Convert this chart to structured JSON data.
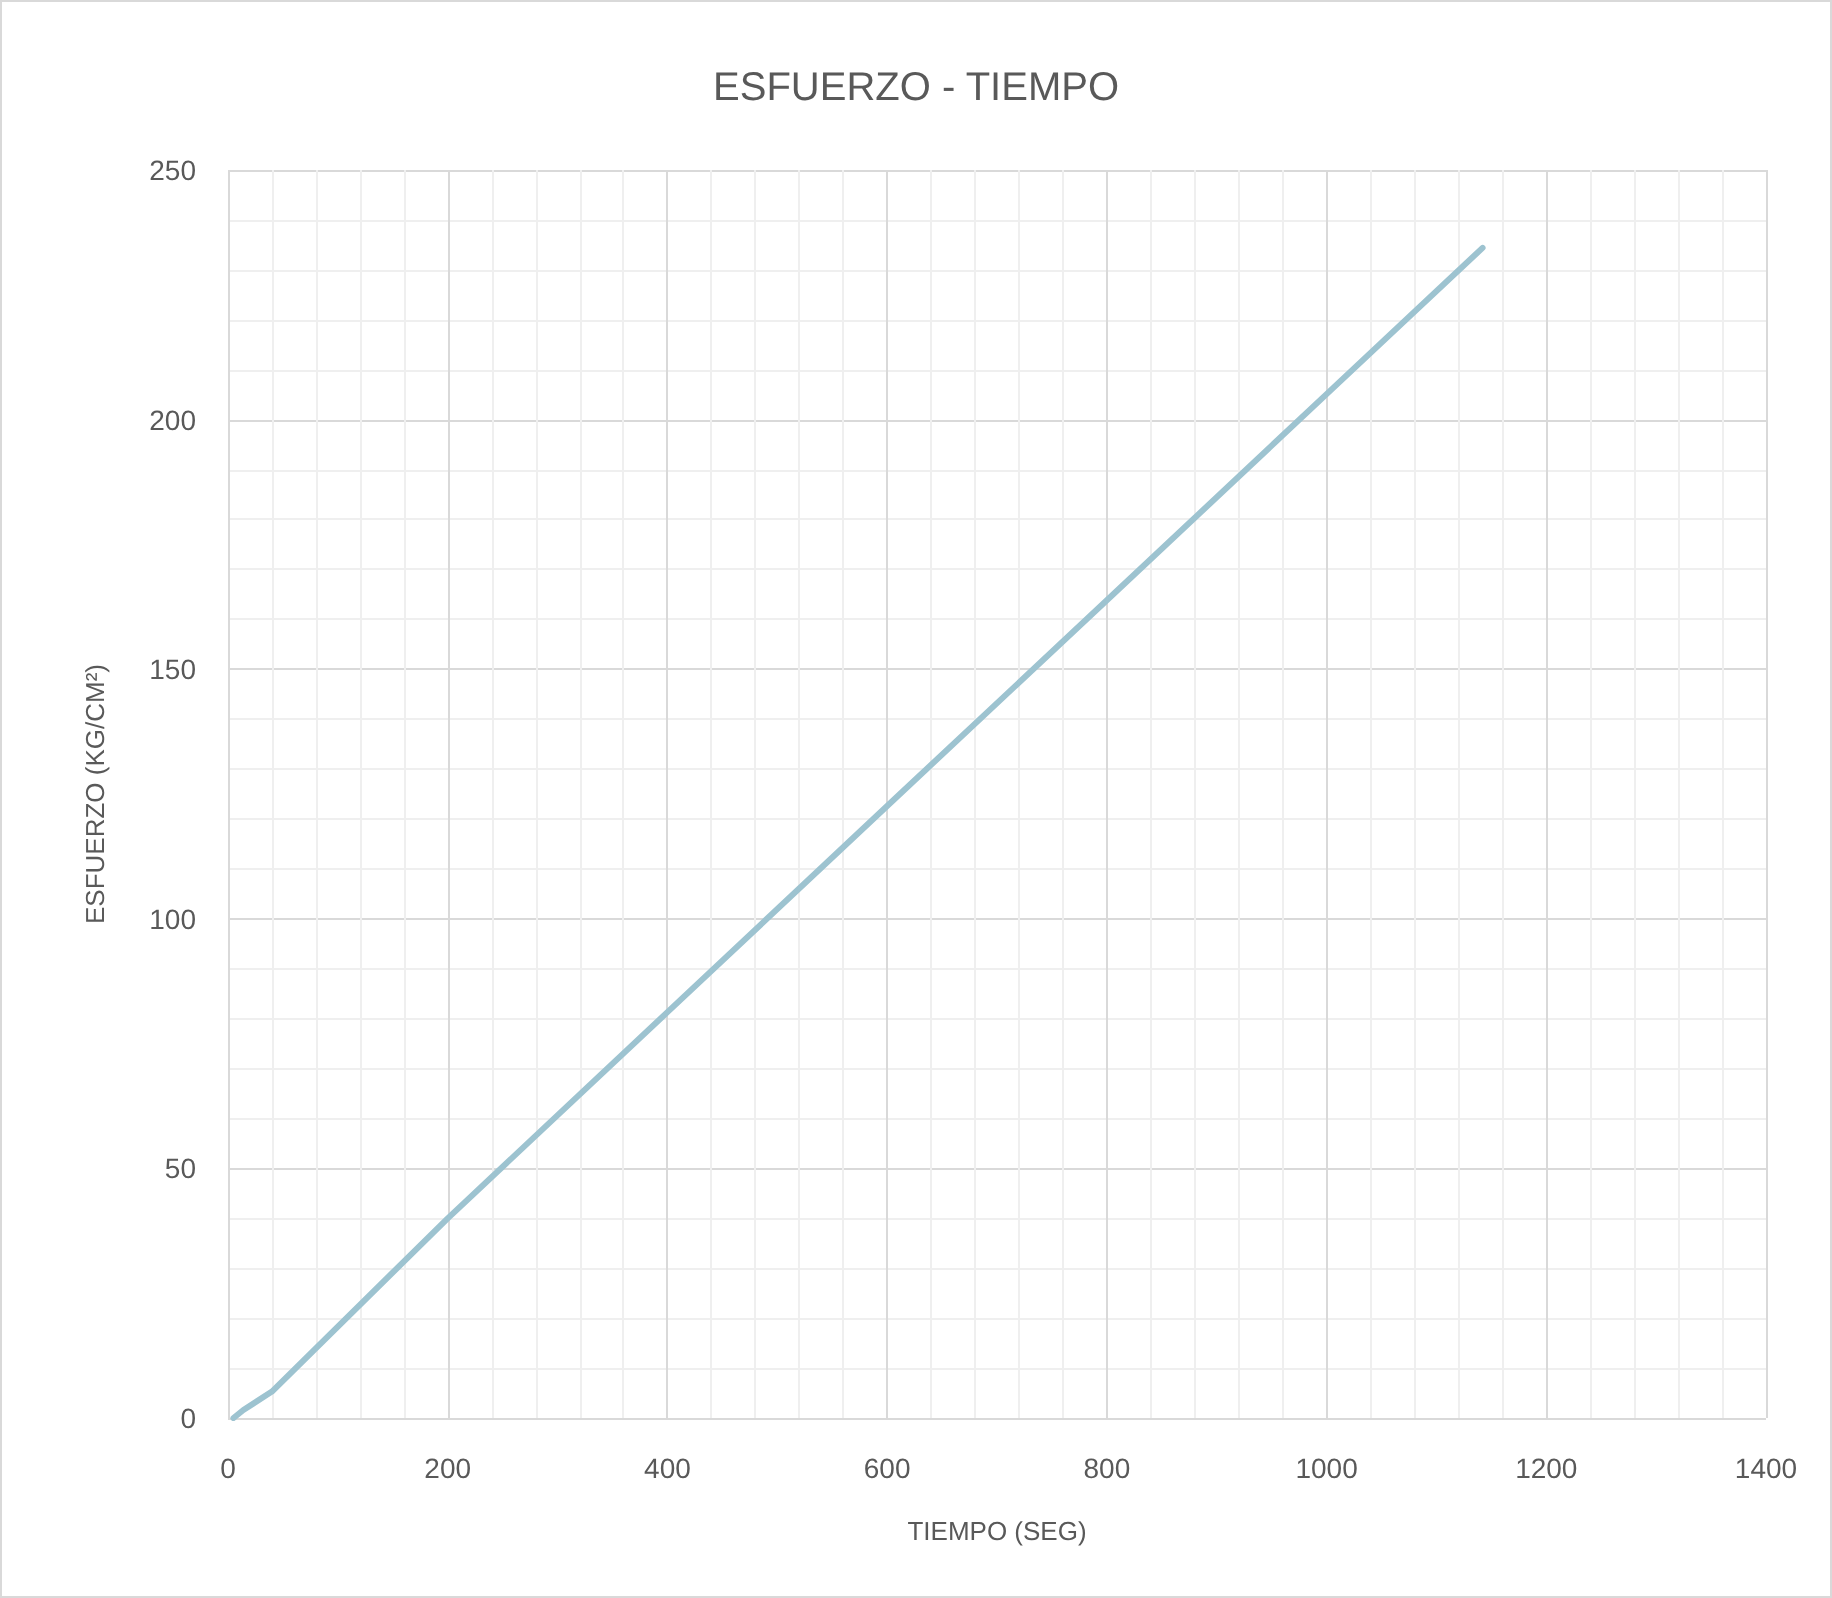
{
  "chart_data": {
    "type": "line",
    "title": "ESFUERZO - TIEMPO",
    "xlabel": "TIEMPO (SEG)",
    "ylabel": "ESFUERZO (KG/CM²)",
    "x": [
      5,
      14,
      40,
      200,
      400,
      600,
      800,
      1000,
      1142
    ],
    "series": [
      {
        "color": "#9dc3d0",
        "values": [
          0,
          1.6,
          5.3,
          40,
          81.3,
          122.6,
          163.8,
          205.1,
          234.4
        ]
      }
    ],
    "xlim": [
      0,
      1400
    ],
    "xticks": [
      0,
      200,
      400,
      600,
      800,
      1000,
      1200,
      1400
    ],
    "ylim": [
      0,
      250
    ],
    "yticks": [
      0,
      50,
      100,
      150,
      200,
      250
    ],
    "grid": true,
    "marker": "none",
    "line_style": "solid"
  }
}
